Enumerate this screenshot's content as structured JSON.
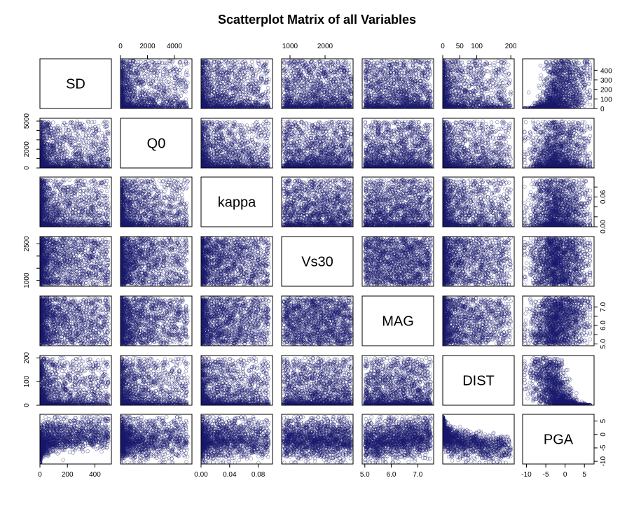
{
  "chart_data": {
    "type": "scatter",
    "subtype": "scatterplot-matrix",
    "title": "Scatterplot Matrix of all Variables",
    "point_color": "#1a1a6e",
    "marker": "open-circle",
    "variables": [
      {
        "name": "SD",
        "range": [
          0,
          520
        ],
        "ticks": [
          0,
          200,
          400
        ],
        "tick_labels": [
          "0",
          "200",
          "400"
        ],
        "right_ticks": [
          0,
          100,
          200,
          300,
          400
        ],
        "right_tick_labels": [
          "0",
          "100",
          "200",
          "300",
          "400"
        ]
      },
      {
        "name": "Q0",
        "range": [
          0,
          5300
        ],
        "ticks": [
          0,
          2000,
          4000
        ],
        "tick_labels": [
          "0",
          "2000",
          "4000"
        ],
        "left_ticks": [
          0,
          2000,
          5000
        ],
        "left_tick_labels": [
          "0",
          "2000",
          "5000"
        ],
        "left_ticks_minor": [
          1000,
          3000,
          4000
        ]
      },
      {
        "name": "kappa",
        "range": [
          0,
          0.1
        ],
        "ticks": [
          0,
          0.04,
          0.08
        ],
        "tick_labels": [
          "0.00",
          "0.04",
          "0.08"
        ],
        "right_ticks": [
          0,
          0.02,
          0.04,
          0.06,
          0.08
        ],
        "right_tick_labels": [
          "0.00",
          "",
          "",
          "0.06",
          ""
        ]
      },
      {
        "name": "Vs30",
        "range": [
          760,
          2800
        ],
        "ticks": [
          1000,
          2000
        ],
        "tick_labels": [
          "1000",
          "2000"
        ],
        "left_ticks": [
          1000,
          1500,
          2000,
          2500
        ],
        "left_tick_labels": [
          "1000",
          "",
          "",
          "2500"
        ]
      },
      {
        "name": "MAG",
        "range": [
          4.9,
          7.6
        ],
        "ticks": [
          5,
          6,
          7
        ],
        "tick_labels": [
          "5.0",
          "6.0",
          "7.0"
        ],
        "right_ticks": [
          5,
          5.5,
          6,
          6.5,
          7
        ],
        "right_tick_labels": [
          "5.0",
          "",
          "6.0",
          "",
          "7.0"
        ]
      },
      {
        "name": "DIST",
        "range": [
          0,
          210
        ],
        "ticks": [
          0,
          50,
          100,
          200
        ],
        "tick_labels": [
          "0",
          "50",
          "100",
          "200"
        ],
        "left_ticks": [
          0,
          100,
          200
        ],
        "left_tick_labels": [
          "0",
          "100",
          "200"
        ]
      },
      {
        "name": "PGA",
        "range": [
          -11,
          7.5
        ],
        "ticks": [
          -10,
          -5,
          0,
          5
        ],
        "tick_labels": [
          "-10",
          "-5",
          "0",
          "5"
        ],
        "right_ticks": [
          -10,
          -5,
          0,
          5
        ],
        "right_tick_labels": [
          "-10",
          "-5",
          "0",
          "5"
        ]
      }
    ],
    "top_axis_columns": [
      1,
      3,
      5
    ],
    "bottom_axis_columns": [
      0,
      2,
      4,
      6
    ],
    "left_axis_rows": [
      1,
      3,
      5
    ],
    "right_axis_rows": [
      0,
      2,
      4,
      6
    ],
    "relationships": {
      "SD-PGA": "positive, saturating",
      "DIST-PGA": "negative, decaying",
      "MAG-PGA": "weak positive",
      "Q0-SD": "points concentrated at low values of both",
      "kappa-SD": "points concentrated at low values of both",
      "DIST-SD": "points concentrated at low values of both",
      "others": "approximately uniform, independent"
    }
  }
}
